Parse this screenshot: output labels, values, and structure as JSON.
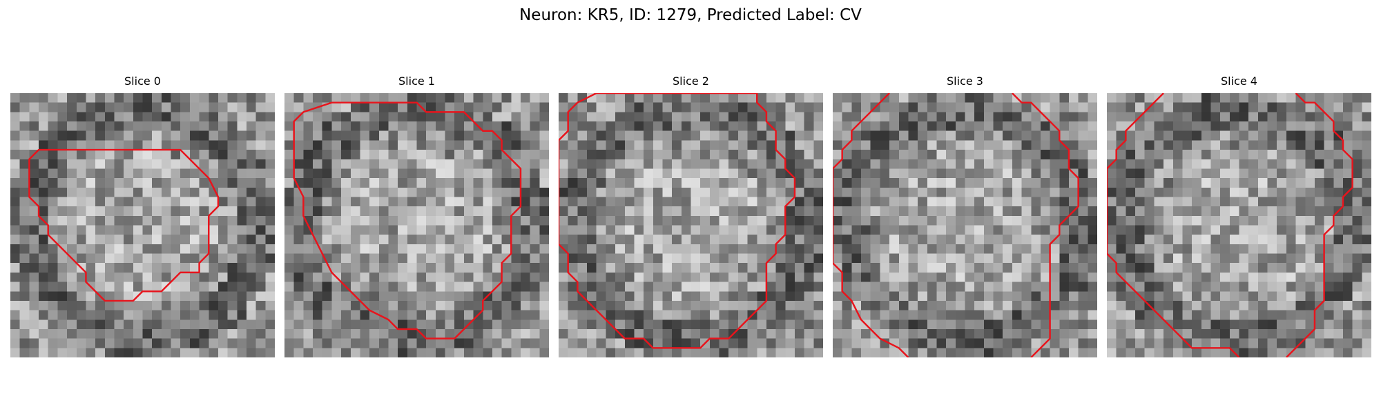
{
  "figure": {
    "title": "Neuron: KR5, ID: 1279, Predicted Label: CV"
  },
  "colors": {
    "contour": "#e8141c",
    "background": "#ffffff"
  },
  "panels": [
    {
      "title": "Slice 0",
      "seed": 11,
      "contour": [
        [
          7,
          6
        ],
        [
          18,
          6
        ],
        [
          21,
          9
        ],
        [
          22,
          11
        ],
        [
          22,
          12
        ],
        [
          21,
          13
        ],
        [
          21,
          17
        ],
        [
          20,
          18
        ],
        [
          20,
          19
        ],
        [
          18,
          19
        ],
        [
          17,
          20
        ],
        [
          16,
          21
        ],
        [
          14,
          21
        ],
        [
          13,
          22
        ],
        [
          10,
          22
        ],
        [
          9,
          21
        ],
        [
          8,
          20
        ],
        [
          8,
          19
        ],
        [
          7,
          18
        ],
        [
          6,
          17
        ],
        [
          5,
          16
        ],
        [
          4,
          15
        ],
        [
          4,
          14
        ],
        [
          3,
          13
        ],
        [
          3,
          12
        ],
        [
          2,
          11
        ],
        [
          2,
          7
        ],
        [
          3,
          6
        ],
        [
          7,
          6
        ]
      ],
      "closed": true
    },
    {
      "title": "Slice 1",
      "seed": 23,
      "contour": [
        [
          5,
          1
        ],
        [
          14,
          1
        ],
        [
          15,
          2
        ],
        [
          19,
          2
        ],
        [
          20,
          3
        ],
        [
          21,
          4
        ],
        [
          22,
          4
        ],
        [
          23,
          5
        ],
        [
          23,
          6
        ],
        [
          24,
          7
        ],
        [
          25,
          8
        ],
        [
          25,
          12
        ],
        [
          24,
          13
        ],
        [
          24,
          17
        ],
        [
          23,
          18
        ],
        [
          23,
          20
        ],
        [
          22,
          21
        ],
        [
          21,
          22
        ],
        [
          21,
          23
        ],
        [
          20,
          24
        ],
        [
          19,
          25
        ],
        [
          18,
          26
        ],
        [
          15,
          26
        ],
        [
          14,
          25
        ],
        [
          12,
          25
        ],
        [
          11,
          24
        ],
        [
          9,
          23
        ],
        [
          7,
          21
        ],
        [
          5,
          19
        ],
        [
          4,
          17
        ],
        [
          3,
          15
        ],
        [
          2,
          13
        ],
        [
          2,
          11
        ],
        [
          1,
          9
        ],
        [
          1,
          3
        ],
        [
          2,
          2
        ],
        [
          5,
          1
        ]
      ],
      "closed": true
    },
    {
      "title": "Slice 2",
      "seed": 37,
      "contour": [
        [
          4,
          0
        ],
        [
          21,
          0
        ],
        [
          21,
          1
        ],
        [
          22,
          2
        ],
        [
          22,
          3
        ],
        [
          23,
          4
        ],
        [
          23,
          6
        ],
        [
          24,
          7
        ],
        [
          24,
          8
        ],
        [
          25,
          9
        ],
        [
          25,
          10
        ],
        [
          25,
          11
        ],
        [
          24,
          12
        ],
        [
          24,
          15
        ],
        [
          23,
          16
        ],
        [
          23,
          17
        ],
        [
          22,
          18
        ],
        [
          22,
          22
        ],
        [
          21,
          23
        ],
        [
          20,
          24
        ],
        [
          19,
          25
        ],
        [
          18,
          26
        ],
        [
          16,
          26
        ],
        [
          15,
          27
        ],
        [
          10,
          27
        ],
        [
          9,
          26
        ],
        [
          7,
          26
        ],
        [
          6,
          25
        ],
        [
          5,
          24
        ],
        [
          4,
          23
        ],
        [
          3,
          22
        ],
        [
          2,
          21
        ],
        [
          2,
          20
        ],
        [
          1,
          19
        ],
        [
          1,
          17
        ],
        [
          0,
          16
        ],
        [
          0,
          5
        ],
        [
          1,
          4
        ],
        [
          1,
          2
        ],
        [
          2,
          1
        ],
        [
          4,
          0
        ]
      ],
      "closed": true
    },
    {
      "title": "Slice 3",
      "seed": 53,
      "contour": [
        [
          6,
          0
        ],
        [
          5,
          1
        ],
        [
          4,
          2
        ],
        [
          3,
          3
        ],
        [
          2,
          4
        ],
        [
          2,
          5
        ],
        [
          1,
          6
        ],
        [
          1,
          7
        ],
        [
          0,
          8
        ],
        [
          0,
          18
        ],
        [
          1,
          19
        ],
        [
          1,
          21
        ],
        [
          2,
          22
        ],
        [
          3,
          24
        ],
        [
          4,
          25
        ],
        [
          5,
          26
        ],
        [
          7,
          27
        ],
        [
          8,
          28
        ]
      ],
      "contour2": [
        [
          19,
          0
        ],
        [
          20,
          1
        ],
        [
          21,
          1
        ],
        [
          22,
          2
        ],
        [
          23,
          3
        ],
        [
          24,
          4
        ],
        [
          24,
          5
        ],
        [
          25,
          6
        ],
        [
          25,
          8
        ],
        [
          26,
          9
        ],
        [
          26,
          12
        ],
        [
          25,
          13
        ],
        [
          24,
          14
        ],
        [
          24,
          15
        ],
        [
          23,
          16
        ],
        [
          23,
          26
        ],
        [
          22,
          27
        ],
        [
          21,
          28
        ]
      ],
      "closed": false
    },
    {
      "title": "Slice 4",
      "seed": 71,
      "contour": [
        [
          6,
          0
        ],
        [
          5,
          1
        ],
        [
          4,
          2
        ],
        [
          3,
          3
        ],
        [
          2,
          4
        ],
        [
          2,
          5
        ],
        [
          1,
          6
        ],
        [
          1,
          7
        ],
        [
          0,
          8
        ],
        [
          0,
          17
        ],
        [
          1,
          18
        ],
        [
          1,
          19
        ],
        [
          2,
          20
        ],
        [
          3,
          21
        ],
        [
          4,
          22
        ],
        [
          5,
          23
        ],
        [
          6,
          24
        ],
        [
          7,
          25
        ],
        [
          8,
          26
        ],
        [
          9,
          27
        ],
        [
          13,
          27
        ],
        [
          14,
          28
        ]
      ],
      "contour2": [
        [
          20,
          0
        ],
        [
          21,
          1
        ],
        [
          22,
          1
        ],
        [
          23,
          2
        ],
        [
          24,
          3
        ],
        [
          24,
          4
        ],
        [
          25,
          5
        ],
        [
          25,
          6
        ],
        [
          26,
          7
        ],
        [
          26,
          10
        ],
        [
          25,
          11
        ],
        [
          25,
          12
        ],
        [
          24,
          13
        ],
        [
          24,
          14
        ],
        [
          23,
          15
        ],
        [
          23,
          22
        ],
        [
          22,
          23
        ],
        [
          22,
          25
        ],
        [
          21,
          26
        ],
        [
          20,
          27
        ],
        [
          19,
          28
        ]
      ],
      "closed": false
    }
  ]
}
